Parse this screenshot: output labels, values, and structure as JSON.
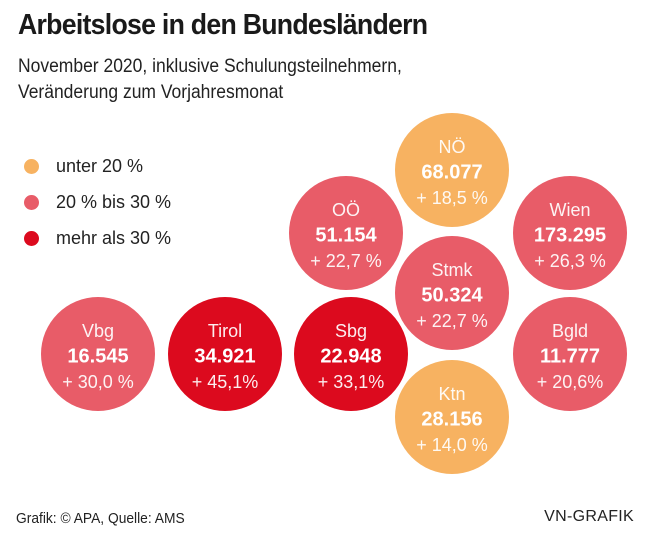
{
  "chart_data": {
    "type": "bubble-grid",
    "title": "Arbeitslose in den Bundesländern",
    "subtitle_lines": [
      "November 2020, inklusive Schulungsteilnehmern,",
      "Veränderung zum Vorjahresmonat"
    ],
    "legend": [
      {
        "label": "unter 20 %",
        "color": "#f7b261",
        "category": "low"
      },
      {
        "label": "20 % bis 30 %",
        "color": "#e85c68",
        "category": "mid"
      },
      {
        "label": "mehr als 30 %",
        "color": "#dc0a1e",
        "category": "high"
      }
    ],
    "states": [
      {
        "name": "NÖ",
        "value": "68.077",
        "change": "+ 18,5 %",
        "change_pct": 18.5,
        "category": "low"
      },
      {
        "name": "OÖ",
        "value": "51.154",
        "change": "+ 22,7 %",
        "change_pct": 22.7,
        "category": "mid"
      },
      {
        "name": "Wien",
        "value": "173.295",
        "change": "+ 26,3 %",
        "change_pct": 26.3,
        "category": "mid"
      },
      {
        "name": "Stmk",
        "value": "50.324",
        "change": "+ 22,7 %",
        "change_pct": 22.7,
        "category": "mid"
      },
      {
        "name": "Vbg",
        "value": "16.545",
        "change": "+ 30,0 %",
        "change_pct": 30.0,
        "category": "mid"
      },
      {
        "name": "Tirol",
        "value": "34.921",
        "change": "+ 45,1%",
        "change_pct": 45.1,
        "category": "high"
      },
      {
        "name": "Sbg",
        "value": "22.948",
        "change": "+ 33,1%",
        "change_pct": 33.1,
        "category": "high"
      },
      {
        "name": "Bgld",
        "value": "11.777",
        "change": "+ 20,6%",
        "change_pct": 20.6,
        "category": "mid"
      },
      {
        "name": "Ktn",
        "value": "28.156",
        "change": "+ 14,0 %",
        "change_pct": 14.0,
        "category": "low"
      }
    ]
  },
  "footer": {
    "source": "Grafik: © APA, Quelle: AMS",
    "brand": "VN-GRAFIK"
  }
}
